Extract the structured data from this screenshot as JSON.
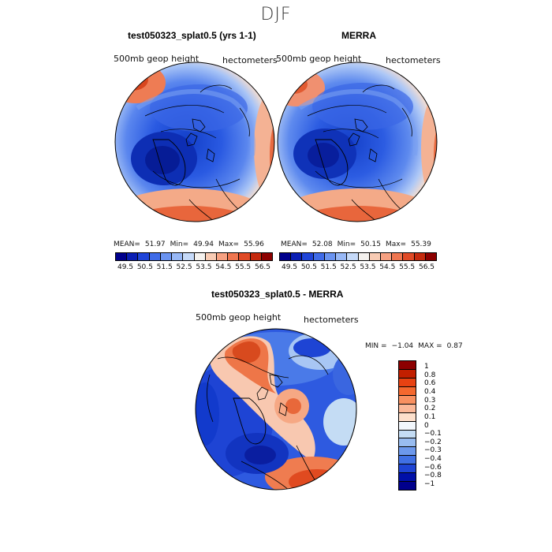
{
  "season": "DJF",
  "panels": [
    {
      "title": "test050323_splat0.5 (yrs 1-1)",
      "variable": "500mb geop height",
      "units": "hectometers",
      "stats": {
        "mean_label": "MEAN=",
        "mean": "51.97",
        "min_label": "Min=",
        "min": "49.94",
        "max_label": "Max=",
        "max": "55.96"
      }
    },
    {
      "title": "MERRA",
      "variable": "500mb geop height",
      "units": "hectometers",
      "stats": {
        "mean_label": "MEAN=",
        "mean": "52.08",
        "min_label": "Min=",
        "min": "50.15",
        "max_label": "Max=",
        "max": "55.39"
      }
    },
    {
      "title": "test050323_splat0.5 - MERRA",
      "variable": "500mb geop height",
      "units": "hectometers",
      "stats": {
        "min_label": "MIN =",
        "min": "−1.04",
        "max_label": "MAX =",
        "max": "0.87"
      }
    }
  ],
  "colorbar_main": {
    "colors": [
      "#00008c",
      "#0a1eb4",
      "#1f44d8",
      "#3f6be8",
      "#6a93f0",
      "#98b8f6",
      "#c6daf9",
      "#f4f1ee",
      "#f8cbb4",
      "#f6a182",
      "#ef7650",
      "#e04a26",
      "#c52a0e",
      "#8c0000"
    ],
    "ticks": [
      "49.5",
      "50.5",
      "51.5",
      "52.5",
      "53.5",
      "54.5",
      "55.5",
      "56.5"
    ]
  },
  "colorbar_diff": {
    "colors": [
      "#8c0000",
      "#c21f00",
      "#e84212",
      "#f4682e",
      "#f89060",
      "#fbb898",
      "#fde0cc",
      "#f2f7fc",
      "#c4dcf4",
      "#98bcf0",
      "#6c98ec",
      "#4070e4",
      "#1e44d4",
      "#0010a8",
      "#00008c"
    ],
    "ticks": [
      "1",
      "0.8",
      "0.6",
      "0.4",
      "0.3",
      "0.2",
      "0.1",
      "0",
      "−0.1",
      "−0.2",
      "−0.3",
      "−0.4",
      "−0.6",
      "−0.8",
      "−1"
    ]
  }
}
